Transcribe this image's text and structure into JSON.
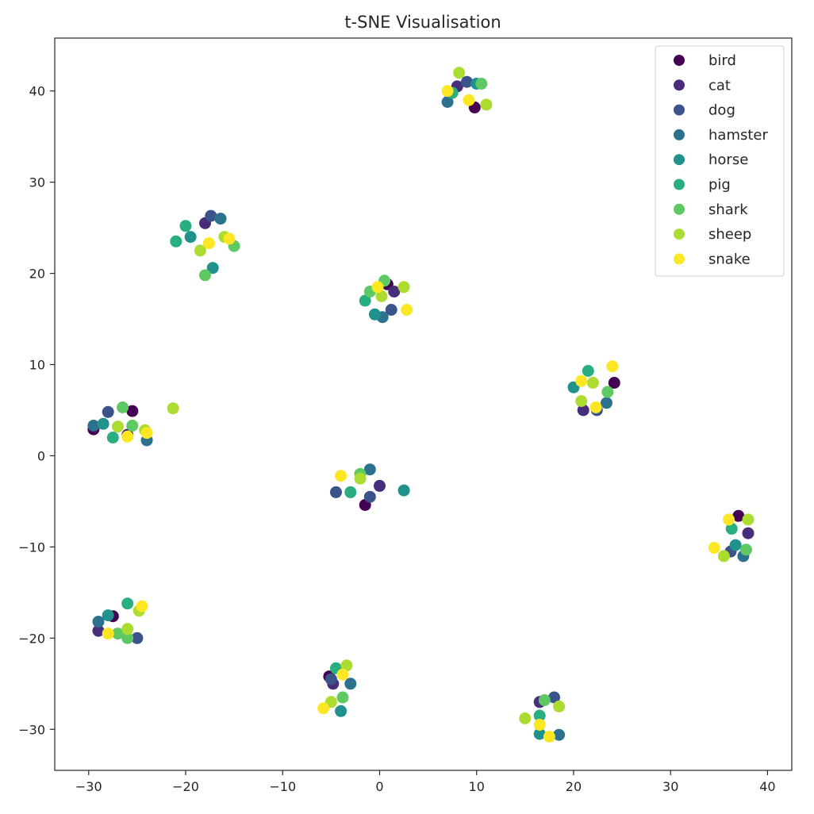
{
  "chart_data": {
    "type": "scatter",
    "title": "t-SNE Visualisation",
    "xlabel": "",
    "ylabel": "",
    "xlim": [
      -33.5,
      42.5
    ],
    "ylim": [
      -34.5,
      45.8
    ],
    "x_ticks": [
      -30,
      -20,
      -10,
      0,
      10,
      20,
      30,
      40
    ],
    "y_ticks": [
      -30,
      -20,
      -10,
      0,
      10,
      20,
      30,
      40
    ],
    "x_tick_labels": [
      "−30",
      "−20",
      "−10",
      "0",
      "10",
      "20",
      "30",
      "40"
    ],
    "y_tick_labels": [
      "−30",
      "−20",
      "−10",
      "0",
      "10",
      "20",
      "30",
      "40"
    ],
    "grid": false,
    "legend_position": "top-right",
    "colormap": "viridis",
    "series": [
      {
        "name": "bird",
        "color": "#440154",
        "x": [
          -29.5,
          -25.5,
          0.8,
          24.2,
          37.0,
          -27.5,
          -5.2,
          -1.5,
          9.8
        ],
        "y": [
          2.9,
          4.9,
          18.8,
          8.0,
          -6.6,
          -17.6,
          -24.2,
          -5.4,
          38.2
        ]
      },
      {
        "name": "cat",
        "color": "#472d7b",
        "x": [
          -26.0,
          1.5,
          21.0,
          38.0,
          -29.0,
          -4.8,
          0.0,
          16.5,
          -18.0,
          8.0
        ],
        "y": [
          2.3,
          18.0,
          5.0,
          -8.5,
          -19.2,
          -25.0,
          -3.3,
          -27.0,
          25.5,
          40.5
        ]
      },
      {
        "name": "dog",
        "color": "#3b528b",
        "x": [
          -28.0,
          -4.5,
          1.2,
          22.4,
          36.2,
          -25.0,
          -5.0,
          -1.0,
          18.0,
          -17.4,
          9.0
        ],
        "y": [
          4.8,
          -4.0,
          16.0,
          5.0,
          -10.5,
          -20.0,
          -24.5,
          -4.5,
          -26.5,
          26.3,
          41.0
        ]
      },
      {
        "name": "hamster",
        "color": "#2c728e",
        "x": [
          -29.5,
          -24.0,
          0.3,
          23.4,
          37.5,
          -29.0,
          -3.0,
          -1.0,
          18.5,
          -16.4,
          7.0
        ],
        "y": [
          3.3,
          1.7,
          15.2,
          5.8,
          -11.0,
          -18.2,
          -25.0,
          -1.5,
          -30.6,
          26.0,
          38.8
        ]
      },
      {
        "name": "horse",
        "color": "#21918c",
        "x": [
          -28.5,
          -0.5,
          20.0,
          36.7,
          -28.0,
          -4.0,
          2.5,
          16.5,
          -17.2,
          10.0,
          -19.5
        ],
        "y": [
          3.5,
          15.5,
          7.5,
          -9.8,
          -17.5,
          -28.0,
          -3.8,
          -30.5,
          20.6,
          40.8,
          24.0
        ]
      },
      {
        "name": "pig",
        "color": "#28ae80",
        "x": [
          -27.5,
          -1.5,
          21.5,
          36.3,
          -26.0,
          -4.5,
          -3.0,
          16.5,
          -21.0,
          7.5,
          -20.0
        ],
        "y": [
          2.0,
          17.0,
          9.3,
          -8.0,
          -16.2,
          -23.3,
          -4.0,
          -28.5,
          23.5,
          39.8,
          25.2
        ]
      },
      {
        "name": "shark",
        "color": "#5ec962",
        "x": [
          -26.5,
          -25.5,
          -1.0,
          0.5,
          23.5,
          37.8,
          -27.0,
          -3.8,
          -2.0,
          17.0,
          -18.0,
          10.5,
          -15.0,
          -26.0
        ],
        "y": [
          5.3,
          3.3,
          18.0,
          19.2,
          7.0,
          -10.3,
          -19.5,
          -26.5,
          -2.0,
          -26.8,
          19.8,
          40.8,
          23.0,
          -20.0
        ]
      },
      {
        "name": "sheep",
        "color": "#addc30",
        "x": [
          -21.3,
          -27.0,
          -24.2,
          0.2,
          2.5,
          20.8,
          22.0,
          35.5,
          38.0,
          -26.0,
          -24.8,
          -3.4,
          -5.0,
          -2.0,
          15.0,
          18.5,
          -16.0,
          -18.5,
          8.2,
          11.0
        ],
        "y": [
          5.2,
          3.2,
          2.8,
          17.5,
          18.5,
          6.0,
          8.0,
          -11.0,
          -7.0,
          -19.0,
          -17.0,
          -23.0,
          -27.0,
          -2.5,
          -28.8,
          -27.5,
          24.0,
          22.5,
          42.0,
          38.5
        ]
      },
      {
        "name": "snake",
        "color": "#fde725",
        "x": [
          -24.0,
          -26.0,
          2.8,
          -0.2,
          24.0,
          20.8,
          22.3,
          34.5,
          36.0,
          -24.5,
          -28.0,
          -3.8,
          -5.8,
          -4.0,
          17.5,
          16.5,
          -15.5,
          -17.6,
          7.0,
          9.2
        ],
        "y": [
          2.5,
          2.1,
          16.0,
          18.5,
          9.8,
          8.2,
          5.3,
          -10.1,
          -7.0,
          -16.5,
          -19.5,
          -24.0,
          -27.7,
          -2.2,
          -30.8,
          -29.5,
          23.8,
          23.3,
          40.0,
          39.0
        ]
      }
    ]
  }
}
